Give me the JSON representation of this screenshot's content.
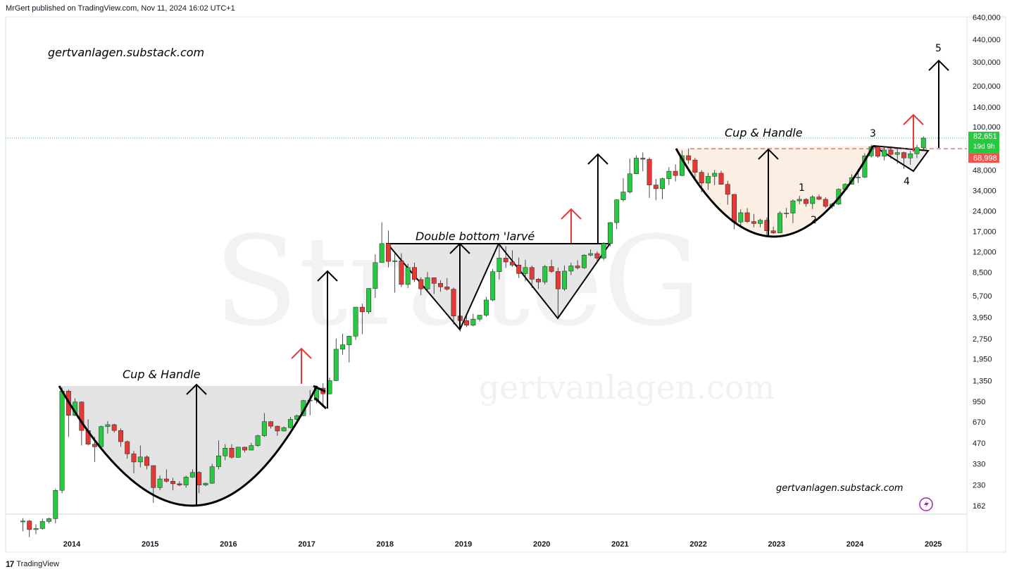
{
  "header": {
    "attribution": "MrGert published on TradingView.com, Nov 11, 2024 16:02 UTC+1"
  },
  "footer": {
    "brand": "TradingView",
    "logo": "17"
  },
  "watermarks": {
    "primary": "StrateG",
    "secondary": "gertvanlagen.com"
  },
  "annotations": {
    "site_top": "gertvanlagen.substack.com",
    "site_bottom": "gertvanlagen.substack.com",
    "cup_handle_1": "Cup & Handle",
    "double_bottom": "Double bottom 'larvé",
    "cup_handle_2": "Cup & Handle",
    "wave_1": "1",
    "wave_2": "2",
    "wave_3": "3",
    "wave_4": "4",
    "wave_5": "5"
  },
  "price_labels": {
    "current": "82,651",
    "countdown": "19d 9h",
    "level": "68,998",
    "current_color": "#26c940",
    "level_color": "#ef5350"
  },
  "icons": {
    "flash": "lightning-icon"
  },
  "chart_data": {
    "type": "candlestick",
    "scale": "log",
    "x_tick_labels": [
      "2014",
      "2015",
      "2016",
      "2017",
      "2018",
      "2019",
      "2020",
      "2021",
      "2022",
      "2023",
      "2024",
      "2025"
    ],
    "y_tick_labels": [
      "640,000",
      "440,000",
      "300,000",
      "200,000",
      "140,000",
      "100,000",
      "48,000",
      "34,000",
      "24,000",
      "17,000",
      "12,000",
      "8,500",
      "5,700",
      "3,950",
      "2,750",
      "1,950",
      "1,350",
      "950",
      "670",
      "470",
      "330",
      "230",
      "162"
    ],
    "y_ticks": [
      640000,
      440000,
      300000,
      200000,
      140000,
      100000,
      48000,
      34000,
      24000,
      17000,
      12000,
      8500,
      5700,
      3950,
      2750,
      1950,
      1350,
      950,
      670,
      470,
      330,
      230,
      162
    ],
    "up_color": "#26c940",
    "down_color": "#e53935",
    "candles": [
      [
        "2013-05",
        123,
        131,
        105,
        125
      ],
      [
        "2013-06",
        125,
        127,
        95,
        108
      ],
      [
        "2013-07",
        108,
        118,
        100,
        110
      ],
      [
        "2013-08",
        110,
        130,
        108,
        124
      ],
      [
        "2013-09",
        124,
        132,
        120,
        130
      ],
      [
        "2013-10",
        130,
        215,
        120,
        210
      ],
      [
        "2013-11",
        210,
        1200,
        200,
        1130
      ],
      [
        "2013-12",
        1130,
        1160,
        520,
        750
      ],
      [
        "2014-01",
        750,
        1000,
        740,
        940
      ],
      [
        "2014-02",
        940,
        950,
        450,
        580
      ],
      [
        "2014-03",
        580,
        700,
        450,
        460
      ],
      [
        "2014-04",
        460,
        520,
        340,
        440
      ],
      [
        "2014-05",
        440,
        630,
        430,
        620
      ],
      [
        "2014-06",
        620,
        680,
        550,
        640
      ],
      [
        "2014-07",
        640,
        650,
        560,
        580
      ],
      [
        "2014-08",
        580,
        600,
        440,
        480
      ],
      [
        "2014-09",
        480,
        490,
        360,
        390
      ],
      [
        "2014-10",
        390,
        410,
        280,
        340
      ],
      [
        "2014-11",
        340,
        450,
        310,
        370
      ],
      [
        "2014-12",
        370,
        380,
        300,
        320
      ],
      [
        "2015-01",
        320,
        320,
        170,
        220
      ],
      [
        "2015-02",
        220,
        270,
        210,
        255
      ],
      [
        "2015-03",
        255,
        300,
        240,
        245
      ],
      [
        "2015-04",
        245,
        260,
        210,
        235
      ],
      [
        "2015-05",
        235,
        245,
        225,
        230
      ],
      [
        "2015-06",
        230,
        270,
        220,
        263
      ],
      [
        "2015-07",
        263,
        300,
        260,
        285
      ],
      [
        "2015-08",
        285,
        290,
        200,
        230
      ],
      [
        "2015-09",
        230,
        240,
        225,
        237
      ],
      [
        "2015-10",
        237,
        330,
        235,
        314
      ],
      [
        "2015-11",
        314,
        490,
        300,
        377
      ],
      [
        "2015-12",
        377,
        460,
        350,
        430
      ],
      [
        "2016-01",
        430,
        460,
        360,
        368
      ],
      [
        "2016-02",
        368,
        440,
        365,
        437
      ],
      [
        "2016-03",
        437,
        440,
        400,
        416
      ],
      [
        "2016-04",
        416,
        470,
        415,
        449
      ],
      [
        "2016-05",
        449,
        540,
        440,
        531
      ],
      [
        "2016-06",
        531,
        780,
        520,
        674
      ],
      [
        "2016-07",
        674,
        680,
        600,
        624
      ],
      [
        "2016-08",
        624,
        630,
        530,
        575
      ],
      [
        "2016-09",
        575,
        620,
        570,
        609
      ],
      [
        "2016-10",
        609,
        730,
        600,
        700
      ],
      [
        "2016-11",
        700,
        760,
        680,
        745
      ],
      [
        "2016-12",
        745,
        975,
        740,
        963
      ],
      [
        "2017-01",
        963,
        1150,
        750,
        970
      ],
      [
        "2017-02",
        970,
        1200,
        920,
        1190
      ],
      [
        "2017-03",
        1190,
        1290,
        890,
        1080
      ],
      [
        "2017-04",
        1080,
        1420,
        1070,
        1350
      ],
      [
        "2017-05",
        1350,
        2760,
        1340,
        2300
      ],
      [
        "2017-06",
        2300,
        3000,
        2100,
        2480
      ],
      [
        "2017-07",
        2480,
        2900,
        1840,
        2870
      ],
      [
        "2017-08",
        2870,
        4700,
        2700,
        4700
      ],
      [
        "2017-09",
        4700,
        4980,
        2970,
        4340
      ],
      [
        "2017-10",
        4340,
        6470,
        4200,
        6450
      ],
      [
        "2017-11",
        6450,
        11500,
        5500,
        10000
      ],
      [
        "2017-12",
        10000,
        19800,
        10000,
        13800
      ],
      [
        "2018-01",
        13800,
        17200,
        9200,
        10200
      ],
      [
        "2018-02",
        10200,
        11800,
        6000,
        10300
      ],
      [
        "2018-03",
        10300,
        11700,
        6600,
        6900
      ],
      [
        "2018-04",
        6900,
        9800,
        6500,
        9200
      ],
      [
        "2018-05",
        9200,
        10000,
        7200,
        7500
      ],
      [
        "2018-06",
        7500,
        7800,
        5750,
        6400
      ],
      [
        "2018-07",
        6400,
        8500,
        6100,
        7730
      ],
      [
        "2018-08",
        7730,
        7760,
        5860,
        7030
      ],
      [
        "2018-09",
        7030,
        7400,
        6100,
        6630
      ],
      [
        "2018-10",
        6630,
        7700,
        6200,
        6370
      ],
      [
        "2018-11",
        6370,
        6550,
        3500,
        4040
      ],
      [
        "2018-12",
        4040,
        4300,
        3100,
        3740
      ],
      [
        "2019-01",
        3740,
        4100,
        3350,
        3460
      ],
      [
        "2019-02",
        3460,
        4200,
        3390,
        3830
      ],
      [
        "2019-03",
        3830,
        4100,
        3680,
        4100
      ],
      [
        "2019-04",
        4100,
        5600,
        4000,
        5300
      ],
      [
        "2019-05",
        5300,
        9000,
        5200,
        8570
      ],
      [
        "2019-06",
        8570,
        13900,
        7500,
        10800
      ],
      [
        "2019-07",
        10800,
        13200,
        9100,
        10100
      ],
      [
        "2019-08",
        10100,
        12300,
        9300,
        9600
      ],
      [
        "2019-09",
        9600,
        10900,
        7700,
        8300
      ],
      [
        "2019-10",
        8300,
        10500,
        7300,
        9200
      ],
      [
        "2019-11",
        9200,
        9500,
        6500,
        7550
      ],
      [
        "2019-12",
        7550,
        7700,
        6400,
        7200
      ],
      [
        "2020-01",
        7200,
        9600,
        6900,
        9350
      ],
      [
        "2020-02",
        9350,
        10500,
        8400,
        8600
      ],
      [
        "2020-03",
        8600,
        9200,
        3850,
        6400
      ],
      [
        "2020-04",
        6400,
        9500,
        6200,
        8650
      ],
      [
        "2020-05",
        8650,
        10000,
        8100,
        9450
      ],
      [
        "2020-06",
        9450,
        10400,
        8900,
        9150
      ],
      [
        "2020-07",
        9150,
        11500,
        9000,
        11350
      ],
      [
        "2020-08",
        11350,
        12500,
        11100,
        11650
      ],
      [
        "2020-09",
        11650,
        12100,
        9900,
        10780
      ],
      [
        "2020-10",
        10780,
        14100,
        10400,
        13800
      ],
      [
        "2020-11",
        13800,
        19900,
        13200,
        19700
      ],
      [
        "2020-12",
        19700,
        29300,
        17600,
        28990
      ],
      [
        "2021-01",
        28990,
        41900,
        28100,
        33100
      ],
      [
        "2021-02",
        33100,
        58300,
        32300,
        45100
      ],
      [
        "2021-03",
        45100,
        61700,
        45000,
        58800
      ],
      [
        "2021-04",
        58800,
        64800,
        47000,
        57700
      ],
      [
        "2021-05",
        57700,
        59500,
        30000,
        37300
      ],
      [
        "2021-06",
        37300,
        41300,
        28800,
        35000
      ],
      [
        "2021-07",
        35000,
        42300,
        29300,
        41500
      ],
      [
        "2021-08",
        41500,
        50500,
        37300,
        47100
      ],
      [
        "2021-09",
        47100,
        52900,
        39600,
        43800
      ],
      [
        "2021-10",
        43800,
        67000,
        43300,
        61300
      ],
      [
        "2021-11",
        61300,
        69000,
        53300,
        57000
      ],
      [
        "2021-12",
        57000,
        59100,
        42000,
        46200
      ],
      [
        "2022-01",
        46200,
        48000,
        32900,
        38500
      ],
      [
        "2022-02",
        38500,
        45800,
        34300,
        43200
      ],
      [
        "2022-03",
        43200,
        48200,
        37200,
        45500
      ],
      [
        "2022-04",
        45500,
        47400,
        37700,
        37700
      ],
      [
        "2022-05",
        37700,
        40000,
        26700,
        31800
      ],
      [
        "2022-06",
        31800,
        31900,
        17600,
        19900
      ],
      [
        "2022-07",
        19900,
        24700,
        18800,
        23300
      ],
      [
        "2022-08",
        23300,
        25200,
        19600,
        20050
      ],
      [
        "2022-09",
        20050,
        22800,
        18200,
        19400
      ],
      [
        "2022-10",
        19400,
        21000,
        18200,
        20500
      ],
      [
        "2022-11",
        20500,
        21500,
        15500,
        17150
      ],
      [
        "2022-12",
        17150,
        18400,
        16300,
        16550
      ],
      [
        "2023-01",
        16550,
        23900,
        16500,
        23100
      ],
      [
        "2023-02",
        23100,
        25250,
        21350,
        23150
      ],
      [
        "2023-03",
        23150,
        29200,
        19550,
        28500
      ],
      [
        "2023-04",
        28500,
        31000,
        26950,
        29250
      ],
      [
        "2023-05",
        29250,
        29800,
        25800,
        27200
      ],
      [
        "2023-06",
        27200,
        31400,
        24800,
        30450
      ],
      [
        "2023-07",
        30450,
        31800,
        28850,
        29250
      ],
      [
        "2023-08",
        29250,
        30250,
        25150,
        25950
      ],
      [
        "2023-09",
        25950,
        27500,
        24900,
        26950
      ],
      [
        "2023-10",
        26950,
        35200,
        26550,
        34650
      ],
      [
        "2023-11",
        34650,
        38450,
        34100,
        37700
      ],
      [
        "2023-12",
        37700,
        44700,
        37650,
        42300
      ],
      [
        "2024-01",
        42300,
        48950,
        38550,
        42600
      ],
      [
        "2024-02",
        42600,
        63900,
        41900,
        61150
      ],
      [
        "2024-03",
        61150,
        73800,
        59300,
        71300
      ],
      [
        "2024-04",
        71300,
        72800,
        59200,
        60650
      ],
      [
        "2024-05",
        60650,
        71950,
        56550,
        67500
      ],
      [
        "2024-06",
        67500,
        71950,
        58400,
        62700
      ],
      [
        "2024-07",
        62700,
        70000,
        53500,
        64600
      ],
      [
        "2024-08",
        64600,
        65600,
        49000,
        58950
      ],
      [
        "2024-09",
        58950,
        66500,
        52550,
        63300
      ],
      [
        "2024-10",
        63300,
        73600,
        58850,
        70200
      ],
      [
        "2024-11",
        70200,
        85000,
        66800,
        82651
      ]
    ],
    "series_name": "",
    "current_price": 82651,
    "resistance_level": 68998,
    "projection_target": 300000
  }
}
